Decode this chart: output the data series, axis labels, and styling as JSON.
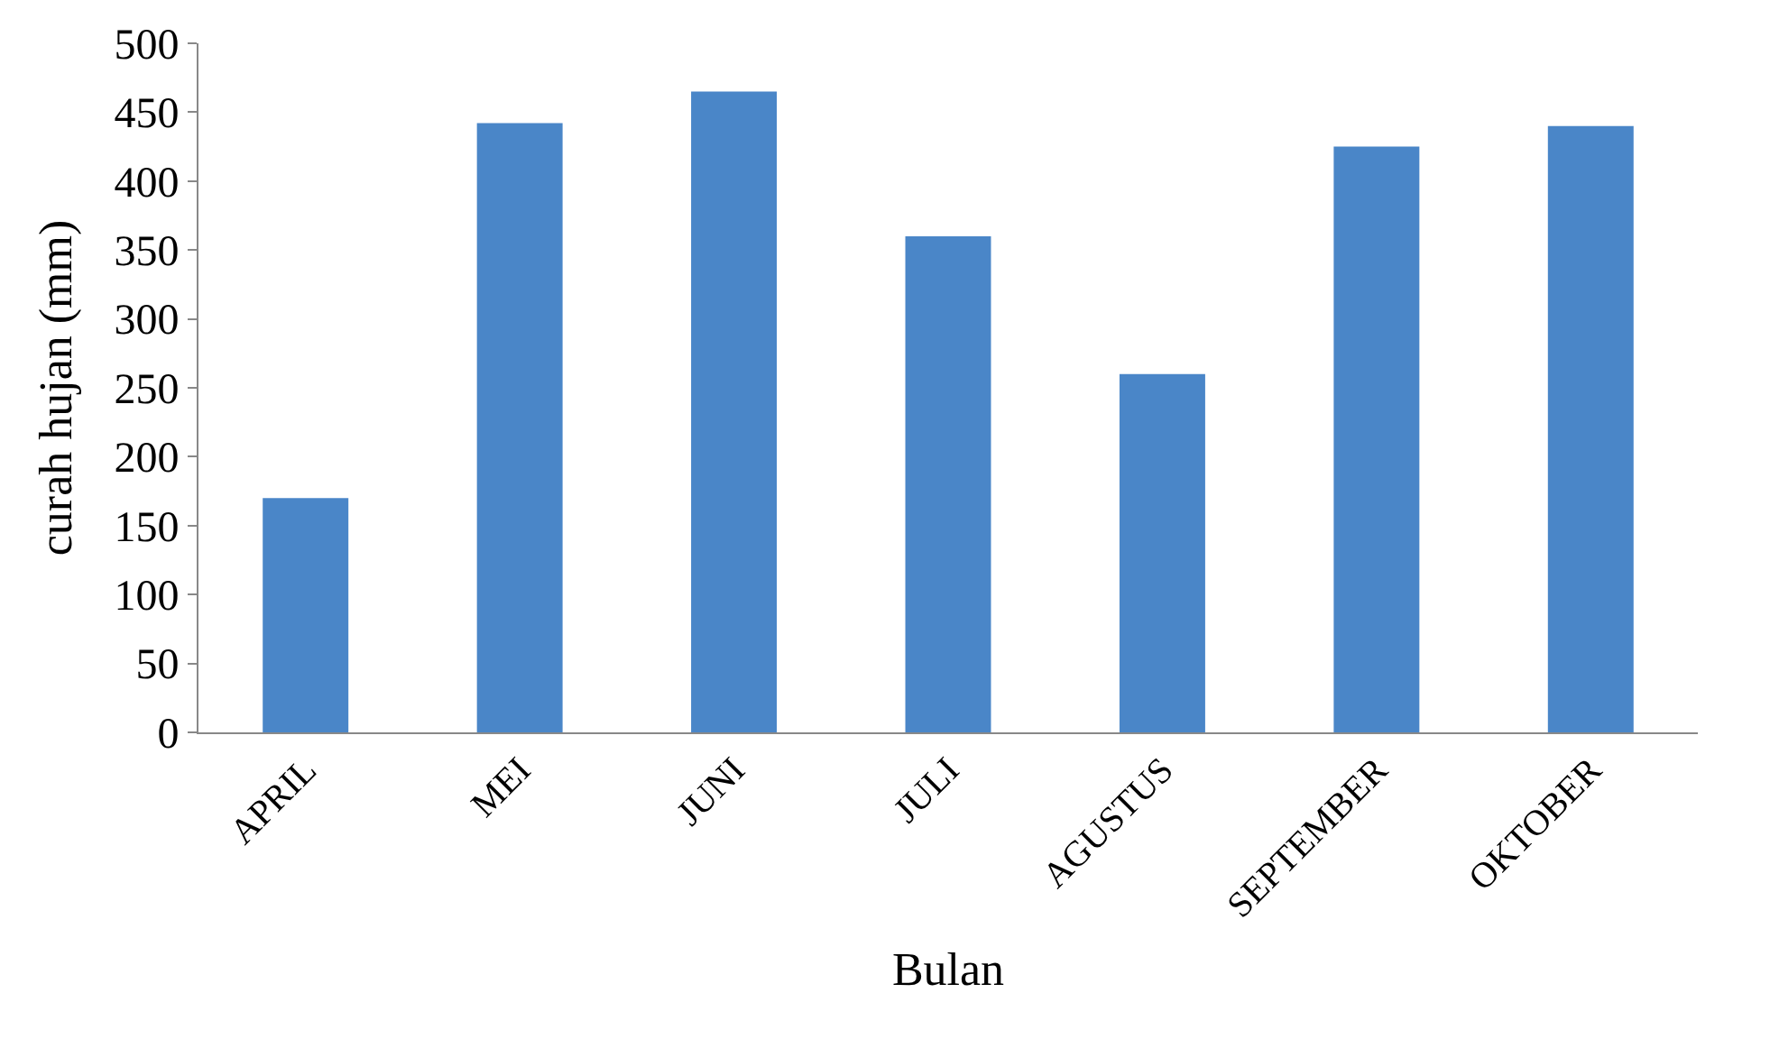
{
  "chart_data": {
    "type": "bar",
    "xlabel": "Bulan",
    "ylabel": "curah hujan (mm)",
    "categories": [
      "APRIL",
      "MEI",
      "JUNI",
      "JULI",
      "AGUSTUS",
      "SEPTEMBER",
      "OKTOBER"
    ],
    "values": [
      170,
      442,
      465,
      360,
      260,
      425,
      440
    ],
    "color": "#4a86c8",
    "ylim": [
      0,
      500
    ],
    "yticks": [
      0,
      50,
      100,
      150,
      200,
      250,
      300,
      350,
      400,
      450,
      500
    ]
  }
}
